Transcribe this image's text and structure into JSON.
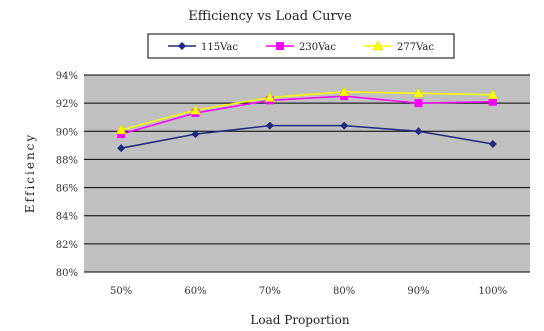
{
  "chart_data": {
    "type": "line",
    "title": "Efficiency vs Load Curve",
    "xlabel": "Load Proportion",
    "ylabel": "Efficiency",
    "categories": [
      "50%",
      "60%",
      "70%",
      "80%",
      "90%",
      "100%"
    ],
    "y_ticks": [
      "80%",
      "82%",
      "84%",
      "86%",
      "88%",
      "90%",
      "92%",
      "94%"
    ],
    "ylim": [
      80,
      94
    ],
    "grid": true,
    "legend_position": "top",
    "series": [
      {
        "name": "115Vac",
        "values": [
          88.8,
          89.8,
          90.4,
          90.4,
          90.0,
          89.1
        ],
        "color": "#1f2a80",
        "marker": "diamond"
      },
      {
        "name": "230Vac",
        "values": [
          89.8,
          91.3,
          92.2,
          92.5,
          92.0,
          92.1
        ],
        "color": "#ff00ff",
        "marker": "square"
      },
      {
        "name": "277Vac",
        "values": [
          90.1,
          91.5,
          92.4,
          92.8,
          92.7,
          92.6
        ],
        "color": "#ffff00",
        "marker": "triangle"
      }
    ],
    "colors": {
      "plot_background": "#c0c0c0",
      "gridline": "#000000"
    }
  }
}
